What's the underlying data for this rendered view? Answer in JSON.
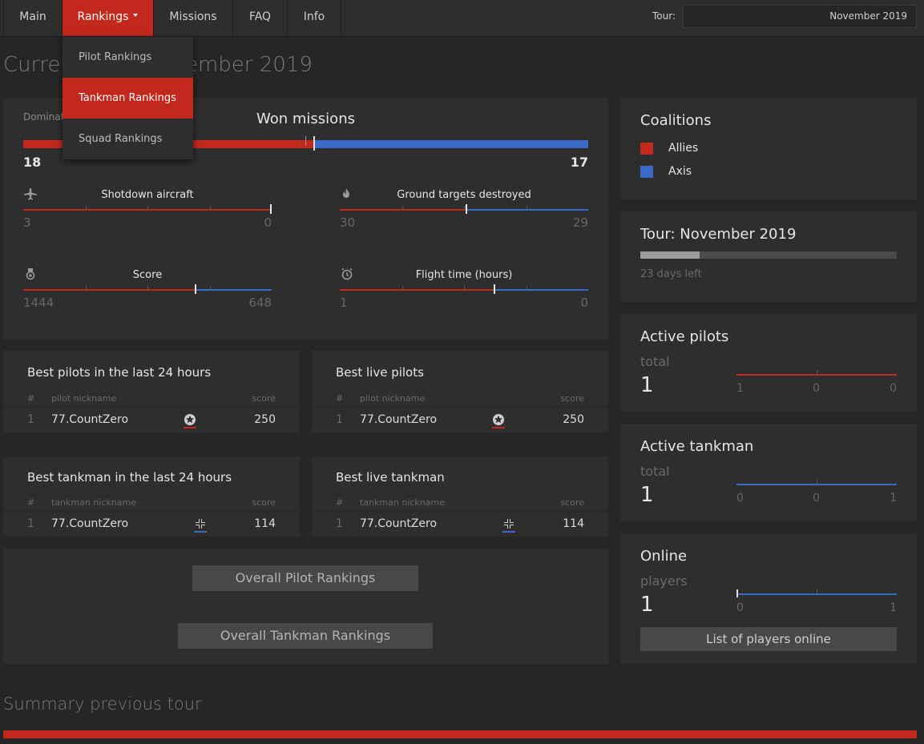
{
  "nav": {
    "items": [
      {
        "label": "Main"
      },
      {
        "label": "Rankings"
      },
      {
        "label": "Missions"
      },
      {
        "label": "FAQ"
      },
      {
        "label": "Info"
      }
    ],
    "tour_label": "Tour:",
    "tour_value": "November 2019"
  },
  "dropdown": {
    "items": [
      {
        "label": "Pilot Rankings"
      },
      {
        "label": "Tankman Rankings"
      },
      {
        "label": "Squad Rankings"
      }
    ]
  },
  "page": {
    "title": "Current tour: November 2019",
    "summary_title": "Summary previous tour"
  },
  "main_stats": {
    "dominated_label": "Dominated",
    "won_title": "Won missions",
    "won": {
      "allies": 18,
      "axis": 17
    },
    "stats": [
      {
        "label": "Shotdown aircraft",
        "icon": "plane-icon",
        "left": "3",
        "right": "0",
        "fraction": 1.0
      },
      {
        "label": "Ground targets destroyed",
        "icon": "fire-icon",
        "left": "30",
        "right": "29",
        "fraction": 0.508
      },
      {
        "label": "Score",
        "icon": "medal-icon",
        "left": "1444",
        "right": "648",
        "fraction": 0.69
      },
      {
        "label": "Flight time (hours)",
        "icon": "clock-icon",
        "left": "1",
        "right": "0",
        "fraction": 0.62
      }
    ]
  },
  "tables": {
    "best_pilots_24h": {
      "title": "Best pilots in the last 24 hours",
      "cols": [
        "#",
        "pilot nickname",
        "score"
      ],
      "rows": [
        {
          "n": "1",
          "name": "77.CountZero",
          "score": "250"
        }
      ]
    },
    "best_live_pilots": {
      "title": "Best live pilots",
      "cols": [
        "#",
        "pilot nickname",
        "score"
      ],
      "rows": [
        {
          "n": "1",
          "name": "77.CountZero",
          "score": "250"
        }
      ]
    },
    "best_tankman_24h": {
      "title": "Best tankman in the last 24 hours",
      "cols": [
        "#",
        "tankman nickname",
        "score"
      ],
      "rows": [
        {
          "n": "1",
          "name": "77.CountZero",
          "score": "114"
        }
      ]
    },
    "best_live_tankman": {
      "title": "Best live tankman",
      "cols": [
        "#",
        "tankman nickname",
        "score"
      ],
      "rows": [
        {
          "n": "1",
          "name": "77.CountZero",
          "score": "114"
        }
      ]
    }
  },
  "buttons": {
    "overall_pilot": "Overall Pilot Rankings",
    "overall_tankman": "Overall Tankman Rankings"
  },
  "coalitions": {
    "title": "Coalitions",
    "items": [
      {
        "label": "Allies",
        "color": "#c3281d"
      },
      {
        "label": "Axis",
        "color": "#3b69c8"
      }
    ]
  },
  "tour": {
    "title": "Tour: November 2019",
    "progress": 0.23,
    "days_left": "23 days left"
  },
  "active_pilots": {
    "title": "Active pilots",
    "sub": "total",
    "count": "1",
    "values": [
      "1",
      "0",
      "0"
    ]
  },
  "active_tankman": {
    "title": "Active tankman",
    "sub": "total",
    "count": "1",
    "values": [
      "0",
      "0",
      "1"
    ]
  },
  "online": {
    "title": "Online",
    "sub": "players",
    "count": "1",
    "values": [
      "0",
      "1"
    ],
    "button": "List of players online"
  },
  "colors": {
    "allies": "#c3281d",
    "axis": "#3b69c8"
  }
}
